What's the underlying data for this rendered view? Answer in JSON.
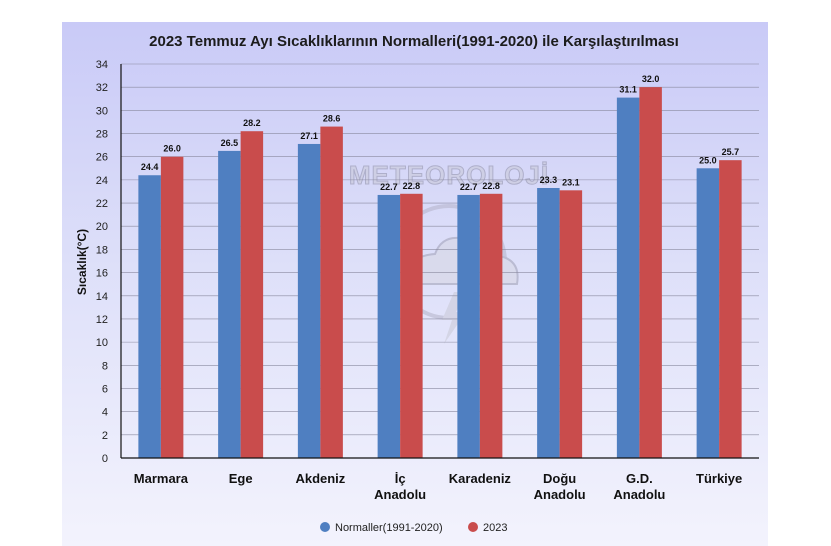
{
  "chart_data": {
    "type": "bar",
    "title": "2023 Temmuz Ayı Sıcaklıklarının Normalleri(1991-2020) ile Karşılaştırılması",
    "xlabel": "",
    "ylabel": "Sıcaklık(°C)",
    "ylim": [
      0,
      34
    ],
    "ytick_step": 2,
    "grid": true,
    "legend_position": "bottom-center",
    "categories": [
      [
        "Marmara"
      ],
      [
        "Ege"
      ],
      [
        "Akdeniz"
      ],
      [
        "İç",
        "Anadolu"
      ],
      [
        "Karadeniz"
      ],
      [
        "Doğu",
        "Anadolu"
      ],
      [
        "G.D.",
        "Anadolu"
      ],
      [
        "Türkiye"
      ]
    ],
    "series": [
      {
        "name": "Normaller(1991-2020)",
        "color": "#4f7fc1",
        "values": [
          24.4,
          26.5,
          27.1,
          22.7,
          22.7,
          23.3,
          31.1,
          25.0
        ],
        "labels": [
          "24.4",
          "26.5",
          "27.1",
          "22.7",
          "22.7",
          "23.3",
          "31.1",
          "25.0"
        ]
      },
      {
        "name": "2023",
        "color": "#c94c4c",
        "values": [
          26.0,
          28.2,
          28.6,
          22.8,
          22.8,
          23.1,
          32.0,
          25.7
        ],
        "labels": [
          "26.0",
          "28.2",
          "28.6",
          "22.8",
          "22.8",
          "23.1",
          "32.0",
          "25.7"
        ]
      }
    ],
    "watermark": "METEOROLOJİ"
  }
}
